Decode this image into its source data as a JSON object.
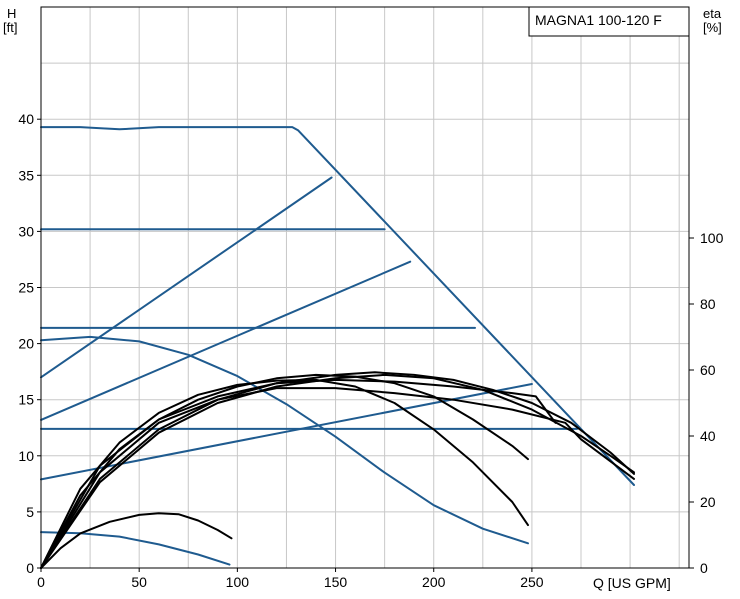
{
  "chart_data": {
    "type": "line",
    "title": "MAGNA1 100-120 F",
    "xlabel": "Q [US GPM]",
    "ylabel_left_line1": "H",
    "ylabel_left_line2": "[ft]",
    "ylabel_right_line1": "eta",
    "ylabel_right_line2": "[%]",
    "x_ticks": [
      0,
      50,
      100,
      150,
      200,
      250
    ],
    "y_left_ticks": [
      0,
      5,
      10,
      15,
      20,
      25,
      30,
      35,
      40
    ],
    "y_right_ticks": [
      0,
      20,
      40,
      60,
      80,
      100
    ],
    "xlim": [
      0,
      330
    ],
    "ylim_left": [
      0,
      50
    ],
    "ylim_right": [
      0,
      170
    ],
    "grid": true,
    "colors": {
      "blue": "#1f5b8f",
      "black": "#000000",
      "grid": "#c8c8c8"
    },
    "series_blue": [
      {
        "values": [
          [
            0,
            39.3
          ],
          [
            20,
            39.3
          ],
          [
            40,
            39.1
          ],
          [
            60,
            39.3
          ],
          [
            90,
            39.3
          ],
          [
            128,
            39.3
          ],
          [
            131,
            39.0
          ],
          [
            302,
            7.4
          ]
        ]
      },
      {
        "values": [
          [
            0,
            30.2
          ],
          [
            175,
            30.2
          ]
        ]
      },
      {
        "values": [
          [
            0,
            21.4
          ],
          [
            221,
            21.4
          ]
        ]
      },
      {
        "values": [
          [
            0,
            12.4
          ],
          [
            273,
            12.4
          ]
        ]
      },
      {
        "values": [
          [
            0,
            17.0
          ],
          [
            148,
            34.8
          ]
        ]
      },
      {
        "values": [
          [
            0,
            13.2
          ],
          [
            188,
            27.3
          ]
        ]
      },
      {
        "values": [
          [
            0,
            7.9
          ],
          [
            250,
            16.4
          ]
        ]
      },
      {
        "values": [
          [
            0,
            20.3
          ],
          [
            25,
            20.6
          ],
          [
            50,
            20.2
          ],
          [
            75,
            19.0
          ],
          [
            100,
            17.1
          ],
          [
            125,
            14.6
          ],
          [
            150,
            11.7
          ],
          [
            175,
            8.5
          ],
          [
            200,
            5.6
          ],
          [
            225,
            3.5
          ],
          [
            248,
            2.2
          ]
        ]
      },
      {
        "values": [
          [
            0,
            3.2
          ],
          [
            20,
            3.1
          ],
          [
            40,
            2.8
          ],
          [
            60,
            2.1
          ],
          [
            80,
            1.2
          ],
          [
            96,
            0.3
          ]
        ]
      }
    ],
    "series_black": [
      {
        "values": [
          [
            0,
            0
          ],
          [
            10,
            6
          ],
          [
            20,
            10.5
          ],
          [
            35,
            14
          ],
          [
            50,
            16.1
          ],
          [
            60,
            16.6
          ],
          [
            70,
            16.3
          ],
          [
            80,
            14.4
          ],
          [
            90,
            11.5
          ],
          [
            97,
            9.0
          ]
        ]
      },
      {
        "values": [
          [
            0,
            0
          ],
          [
            20,
            24
          ],
          [
            40,
            38
          ],
          [
            60,
            47
          ],
          [
            80,
            52.5
          ],
          [
            100,
            55.5
          ],
          [
            120,
            56.8
          ],
          [
            140,
            57
          ],
          [
            160,
            55
          ],
          [
            180,
            50
          ],
          [
            200,
            42
          ],
          [
            220,
            32
          ],
          [
            240,
            20
          ],
          [
            248,
            13
          ]
        ]
      },
      {
        "values": [
          [
            0,
            0
          ],
          [
            20,
            22
          ],
          [
            40,
            36
          ],
          [
            60,
            45
          ],
          [
            80,
            51
          ],
          [
            100,
            55
          ],
          [
            120,
            57.5
          ],
          [
            140,
            58.5
          ],
          [
            160,
            58
          ],
          [
            180,
            56
          ],
          [
            200,
            52
          ],
          [
            220,
            45
          ],
          [
            240,
            37
          ],
          [
            248,
            33
          ]
        ]
      },
      {
        "values": [
          [
            0,
            0
          ],
          [
            30,
            31
          ],
          [
            60,
            45
          ],
          [
            90,
            52
          ],
          [
            120,
            56
          ],
          [
            150,
            57
          ],
          [
            180,
            56.5
          ],
          [
            210,
            55
          ],
          [
            240,
            53
          ],
          [
            252,
            52
          ],
          [
            262,
            44
          ]
        ]
      },
      {
        "values": [
          [
            0,
            0
          ],
          [
            30,
            29
          ],
          [
            60,
            44
          ],
          [
            90,
            51
          ],
          [
            120,
            54.5
          ],
          [
            150,
            54.5
          ],
          [
            180,
            53
          ],
          [
            210,
            51
          ],
          [
            240,
            48
          ],
          [
            267,
            44
          ],
          [
            275,
            39
          ],
          [
            302,
            27
          ]
        ]
      },
      {
        "values": [
          [
            0,
            0
          ],
          [
            30,
            27
          ],
          [
            60,
            42
          ],
          [
            90,
            51
          ],
          [
            120,
            56
          ],
          [
            150,
            58.5
          ],
          [
            170,
            59.3
          ],
          [
            190,
            58.5
          ],
          [
            210,
            57
          ],
          [
            230,
            54
          ],
          [
            250,
            50
          ],
          [
            270,
            44
          ],
          [
            290,
            35
          ],
          [
            302,
            28.5
          ]
        ]
      },
      {
        "values": [
          [
            0,
            0
          ],
          [
            30,
            26
          ],
          [
            60,
            41
          ],
          [
            90,
            50
          ],
          [
            120,
            55
          ],
          [
            150,
            57.5
          ],
          [
            175,
            58.5
          ],
          [
            200,
            57.5
          ],
          [
            225,
            54
          ],
          [
            250,
            48
          ],
          [
            275,
            40
          ],
          [
            290,
            34
          ],
          [
            302,
            29
          ]
        ]
      }
    ]
  }
}
